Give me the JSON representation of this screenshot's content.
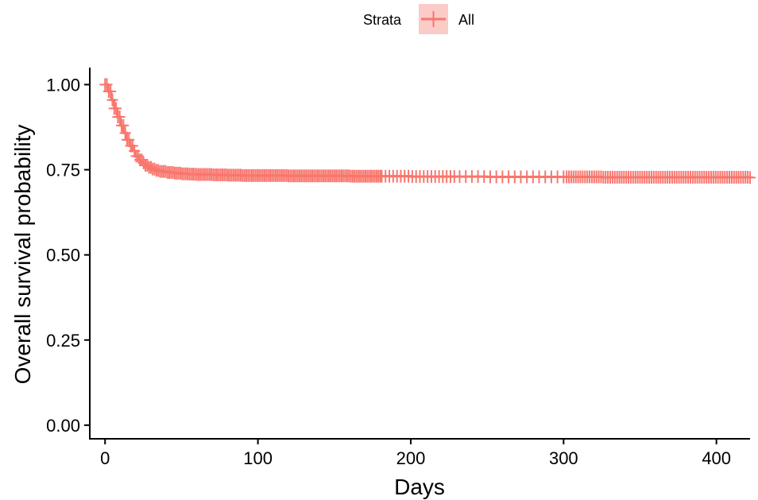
{
  "legend": {
    "title": "Strata",
    "items": [
      {
        "label": "All",
        "color": "#F8766D",
        "fill": "#FBCBC7"
      }
    ],
    "position": "top"
  },
  "chart_data": {
    "type": "line",
    "title": "",
    "xlabel": "Days",
    "ylabel": "Overall survival probability",
    "xlim": [
      -10,
      422
    ],
    "ylim": [
      -0.04,
      1.05
    ],
    "x_ticks": [
      0,
      100,
      200,
      300,
      400
    ],
    "x_tick_labels": [
      "0",
      "100",
      "200",
      "300",
      "400"
    ],
    "y_ticks": [
      0.0,
      0.25,
      0.5,
      0.75,
      1.0
    ],
    "y_tick_labels": [
      "0.00",
      "0.25",
      "0.50",
      "0.75",
      "1.00"
    ],
    "grid": false,
    "censor_marks": true,
    "series": [
      {
        "name": "All",
        "color": "#F8766D",
        "x": [
          0,
          2,
          4,
          6,
          8,
          10,
          12,
          14,
          16,
          18,
          20,
          22,
          24,
          26,
          28,
          30,
          33,
          36,
          40,
          45,
          50,
          55,
          60,
          70,
          80,
          90,
          100,
          120,
          140,
          160,
          180,
          200,
          225,
          250,
          275,
          300,
          325,
          350,
          375,
          400,
          422
        ],
        "y": [
          1.0,
          0.98,
          0.955,
          0.93,
          0.905,
          0.88,
          0.858,
          0.838,
          0.82,
          0.805,
          0.79,
          0.779,
          0.77,
          0.763,
          0.757,
          0.752,
          0.748,
          0.745,
          0.742,
          0.74,
          0.738,
          0.737,
          0.736,
          0.735,
          0.734,
          0.733,
          0.733,
          0.732,
          0.732,
          0.731,
          0.731,
          0.73,
          0.73,
          0.729,
          0.729,
          0.729,
          0.728,
          0.728,
          0.728,
          0.728,
          0.727
        ]
      }
    ]
  }
}
